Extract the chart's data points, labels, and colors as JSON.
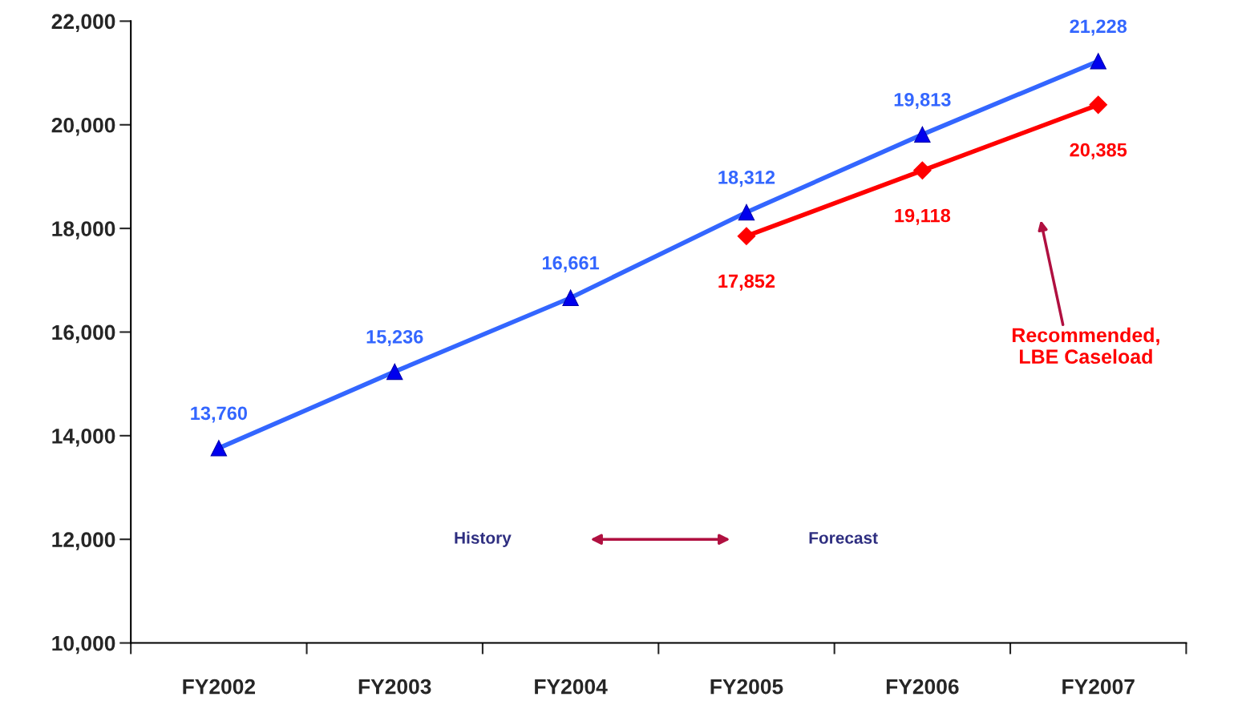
{
  "chart_data": {
    "type": "line",
    "categories": [
      "FY2002",
      "FY2003",
      "FY2004",
      "FY2005",
      "FY2006",
      "FY2007"
    ],
    "series": [
      {
        "color": "#3366ff",
        "marker": "triangle",
        "values": [
          13760,
          15236,
          16661,
          18312,
          19813,
          21228
        ],
        "value_labels": [
          "13,760",
          "15,236",
          "16,661",
          "18,312",
          "19,813",
          "21,228"
        ]
      },
      {
        "color": "#ff0000",
        "marker": "diamond",
        "values": [
          null,
          null,
          null,
          17852,
          19118,
          20385
        ],
        "value_labels": [
          null,
          null,
          null,
          "17,852",
          "19,118",
          "20,385"
        ]
      }
    ],
    "ylim": [
      10000,
      22000
    ],
    "yticks": [
      {
        "value": 10000,
        "label": "10,000"
      },
      {
        "value": 12000,
        "label": "12,000"
      },
      {
        "value": 14000,
        "label": "14,000"
      },
      {
        "value": 16000,
        "label": "16,000"
      },
      {
        "value": 18000,
        "label": "18,000"
      },
      {
        "value": 20000,
        "label": "20,000"
      },
      {
        "value": 22000,
        "label": "22,000"
      }
    ],
    "grid": false,
    "legend": false,
    "line_style": "solid",
    "annotations": [
      "History",
      "Forecast",
      "Recommended,\nLBE Caseload"
    ]
  }
}
